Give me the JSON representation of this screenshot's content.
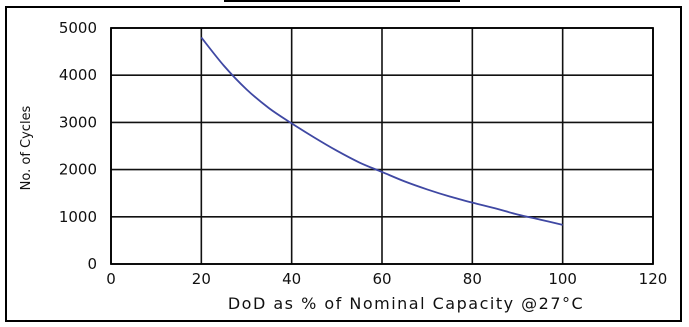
{
  "chart_data": {
    "type": "line",
    "title": "",
    "xlabel": "DoD as % of Nominal Capacity @27°C",
    "ylabel": "No. of Cycles",
    "xlim": [
      0,
      120
    ],
    "ylim": [
      0,
      5000
    ],
    "x_ticks": [
      0,
      20,
      40,
      60,
      80,
      100,
      120
    ],
    "y_ticks": [
      0,
      1000,
      2000,
      3000,
      4000,
      5000
    ],
    "x_tick_labels": [
      "0",
      "20",
      "40",
      "60",
      "80",
      "100",
      "120"
    ],
    "y_tick_labels": [
      "0",
      "1000",
      "2000",
      "3000",
      "4000",
      "5000"
    ],
    "grid": true,
    "series": [
      {
        "color": "#3f48a3",
        "x": [
          20,
          25,
          30,
          35,
          40,
          45,
          50,
          55,
          60,
          65,
          70,
          75,
          80,
          85,
          90,
          95,
          100
        ],
        "y": [
          4800,
          4200,
          3700,
          3300,
          2980,
          2680,
          2400,
          2150,
          1950,
          1750,
          1580,
          1430,
          1300,
          1180,
          1050,
          940,
          830
        ]
      }
    ]
  }
}
